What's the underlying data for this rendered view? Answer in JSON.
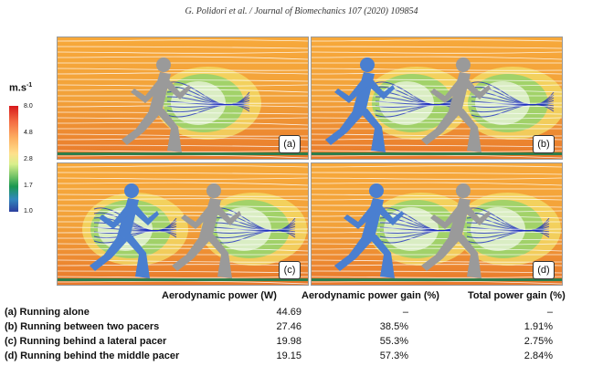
{
  "header": "G. Polidori et al. / Journal of Biomechanics 107 (2020) 109854",
  "colorbar": {
    "unit": "m.s",
    "unit_sup": "-1",
    "ticks": [
      "8.0",
      "4.8",
      "2.8",
      "1.7",
      "1.0"
    ]
  },
  "panels": [
    {
      "label": "(a)"
    },
    {
      "label": "(b)"
    },
    {
      "label": "(c)"
    },
    {
      "label": "(d)"
    }
  ],
  "table": {
    "headers": [
      "Aerodynamic power (W)",
      "Aerodynamic power gain (%)",
      "Total power gain (%)"
    ],
    "rows": [
      {
        "label": "(a) Running alone",
        "power": "44.69",
        "aero_gain": "–",
        "total_gain": "–"
      },
      {
        "label": "(b) Running between two pacers",
        "power": "27.46",
        "aero_gain": "38.5%",
        "total_gain": "1.91%"
      },
      {
        "label": "(c) Running behind a lateral pacer",
        "power": "19.98",
        "aero_gain": "55.3%",
        "total_gain": "2.75%"
      },
      {
        "label": "(d) Running behind the middle pacer",
        "power": "19.15",
        "aero_gain": "57.3%",
        "total_gain": "2.84%"
      }
    ]
  },
  "colors": {
    "flow_background": "#f2a23a",
    "streamline": "#ffffff",
    "wake_blue": "#1f2fc0",
    "runner_grey": "#9a9a9a",
    "runner_blue": "#4a7fd0"
  }
}
